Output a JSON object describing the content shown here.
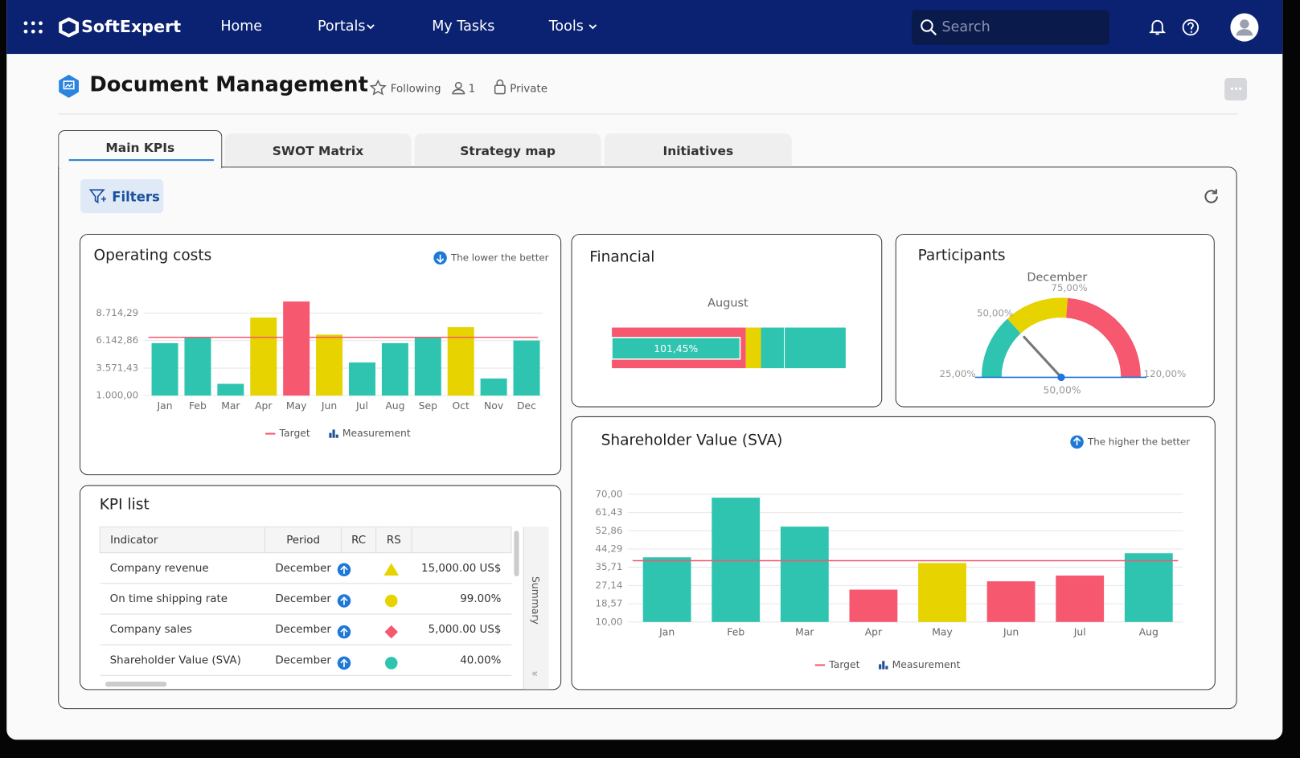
{
  "nav": {
    "brand": "SoftExpert",
    "items": [
      "Home",
      "Portals",
      "My Tasks",
      "Tools"
    ],
    "search": "Search"
  },
  "header": {
    "title": "Document Management",
    "following": "Following",
    "members": "1",
    "privacy": "Private"
  },
  "tabs": [
    "Main KPIs",
    "SWOT Matrix",
    "Strategy map",
    "Initiatives"
  ],
  "filters": "Filters",
  "operating_costs": {
    "type": "bar",
    "title": "Operating costs",
    "note": "The lower the better",
    "categories": [
      "Jan",
      "Feb",
      "Mar",
      "Apr",
      "May",
      "Jun",
      "Jul",
      "Aug",
      "Sep",
      "Oct",
      "Nov",
      "Dec"
    ],
    "values": [
      5900,
      6450,
      2100,
      8300,
      9800,
      6700,
      4100,
      5900,
      6450,
      7400,
      2600,
      6150
    ],
    "colors": [
      "#2ec4b0",
      "#2ec4b0",
      "#2ec4b0",
      "#e6d300",
      "#f5586f",
      "#e6d300",
      "#2ec4b0",
      "#2ec4b0",
      "#2ec4b0",
      "#e6d300",
      "#2ec4b0",
      "#2ec4b0"
    ],
    "target": 6450,
    "target_color": "#f5586f",
    "ylim": [
      1000,
      10000
    ],
    "yticks": [
      {
        "value": 1000,
        "label": "1.000,00"
      },
      {
        "value": 3571.43,
        "label": "3.571,43"
      },
      {
        "value": 6142.86,
        "label": "6.142,86"
      },
      {
        "value": 8714.29,
        "label": "8.714,29"
      }
    ],
    "grid": true,
    "legend": {
      "target": "Target",
      "measurement": "Measurement"
    }
  },
  "financial": {
    "type": "bullet",
    "title": "Financial",
    "subtitle": "August",
    "value": 101.45,
    "value_label": "101,45%",
    "color": "#2ec4b0",
    "xlim": [
      0,
      185
    ],
    "bands": [
      {
        "to": 106,
        "color": "#f5586f"
      },
      {
        "to": 118,
        "color": "#e6d300"
      },
      {
        "to": 185,
        "color": "#2ec4b0"
      }
    ]
  },
  "participants": {
    "type": "gauge",
    "title": "Participants",
    "subtitle": "December",
    "value": 50,
    "value_label": "50,00%",
    "lim": [
      25,
      120
    ],
    "ticks": [
      {
        "value": 25,
        "label": "25,00%"
      },
      {
        "value": 50,
        "label": "50,00%"
      },
      {
        "value": 75,
        "label": "75,00%"
      },
      {
        "value": 120,
        "label": "120,00%"
      }
    ],
    "bands": [
      {
        "to": 50,
        "color": "#2ec4b0"
      },
      {
        "to": 75,
        "color": "#e6d300"
      },
      {
        "to": 120,
        "color": "#f5586f"
      }
    ]
  },
  "kpi_list": {
    "title": "KPI list",
    "columns": [
      "Indicator",
      "Period",
      "RC",
      "RS"
    ],
    "side_label": "Summary",
    "rows": [
      {
        "indicator": "Company revenue",
        "period": "December",
        "rs": {
          "shape": "triangle",
          "color": "#e6d300"
        },
        "value": "15,000.00 US$"
      },
      {
        "indicator": "On time shipping rate",
        "period": "December",
        "rs": {
          "shape": "circle",
          "color": "#e6d300"
        },
        "value": "99.00%"
      },
      {
        "indicator": "Company sales",
        "period": "December",
        "rs": {
          "shape": "diamond",
          "color": "#f5586f"
        },
        "value": "5,000.00 US$"
      },
      {
        "indicator": "Shareholder Value (SVA)",
        "period": "December",
        "rs": {
          "shape": "circle",
          "color": "#2ec4b0"
        },
        "value": "40.00%"
      }
    ]
  },
  "sva": {
    "type": "bar",
    "title": "Shareholder Value (SVA)",
    "note": "The higher the better",
    "categories": [
      "Jan",
      "Feb",
      "Mar",
      "Apr",
      "May",
      "Jun",
      "Jul",
      "Aug"
    ],
    "values": [
      40.4,
      68.4,
      54.8,
      25.2,
      37.7,
      29.1,
      31.8,
      42.3
    ],
    "colors": [
      "#2ec4b0",
      "#2ec4b0",
      "#2ec4b0",
      "#f5586f",
      "#e6d300",
      "#f5586f",
      "#f5586f",
      "#2ec4b0"
    ],
    "target": 38.8,
    "target_color": "#f5586f",
    "ylim": [
      10,
      70
    ],
    "yticks": [
      {
        "value": 10,
        "label": "10,00"
      },
      {
        "value": 18.57,
        "label": "18,57"
      },
      {
        "value": 27.14,
        "label": "27,14"
      },
      {
        "value": 35.71,
        "label": "35,71"
      },
      {
        "value": 44.29,
        "label": "44,29"
      },
      {
        "value": 52.86,
        "label": "52,86"
      },
      {
        "value": 61.43,
        "label": "61,43"
      },
      {
        "value": 70,
        "label": "70,00"
      }
    ],
    "grid": true,
    "legend": {
      "target": "Target",
      "measurement": "Measurement"
    }
  }
}
